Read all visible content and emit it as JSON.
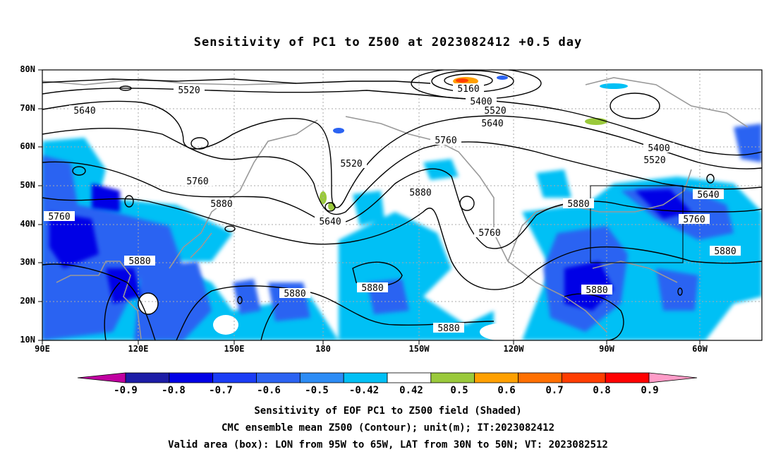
{
  "title": "Sensitivity of PC1 to Z500 at 2023082412 +0.5 day",
  "lat_labels": [
    "80N",
    "70N",
    "60N",
    "50N",
    "40N",
    "30N",
    "20N",
    "10N"
  ],
  "lon_labels": [
    "90E",
    "120E",
    "150E",
    "180",
    "150W",
    "120W",
    "90W",
    "60W"
  ],
  "contour_labels": [
    "5520",
    "5640",
    "5160",
    "5400",
    "5520",
    "5640",
    "5760",
    "5520",
    "5760",
    "5880",
    "5640",
    "5880",
    "5760",
    "5880",
    "5880",
    "5640",
    "5760",
    "5880",
    "5760",
    "5880",
    "5880",
    "5880",
    "5880",
    "5880",
    "5400",
    "5520"
  ],
  "colorbar": {
    "labels": [
      "-0.9",
      "-0.8",
      "-0.7",
      "-0.6",
      "-0.5",
      "-0.42",
      "0.42",
      "0.5",
      "0.6",
      "0.7",
      "0.8",
      "0.9"
    ],
    "colors": [
      "#1c1ca6",
      "#0000e6",
      "#1a3cf5",
      "#2b63f2",
      "#2c8cf5",
      "#00c0f5",
      "#ffffff",
      "#9ac93b",
      "#ffa000",
      "#ff7000",
      "#ff3d00",
      "#ff0000"
    ],
    "low_extend_color": "#c000a0",
    "high_extend_color": "#ff9cc8"
  },
  "footer": {
    "line1": "Sensitivity of EOF PC1 to Z500 field (Shaded)",
    "line2": "CMC ensemble mean Z500 (Contour); unit(m); IT:2023082412",
    "line3": "Valid area (box): LON from 95W to 65W, LAT from 30N to 50N; VT: 2023082512"
  }
}
